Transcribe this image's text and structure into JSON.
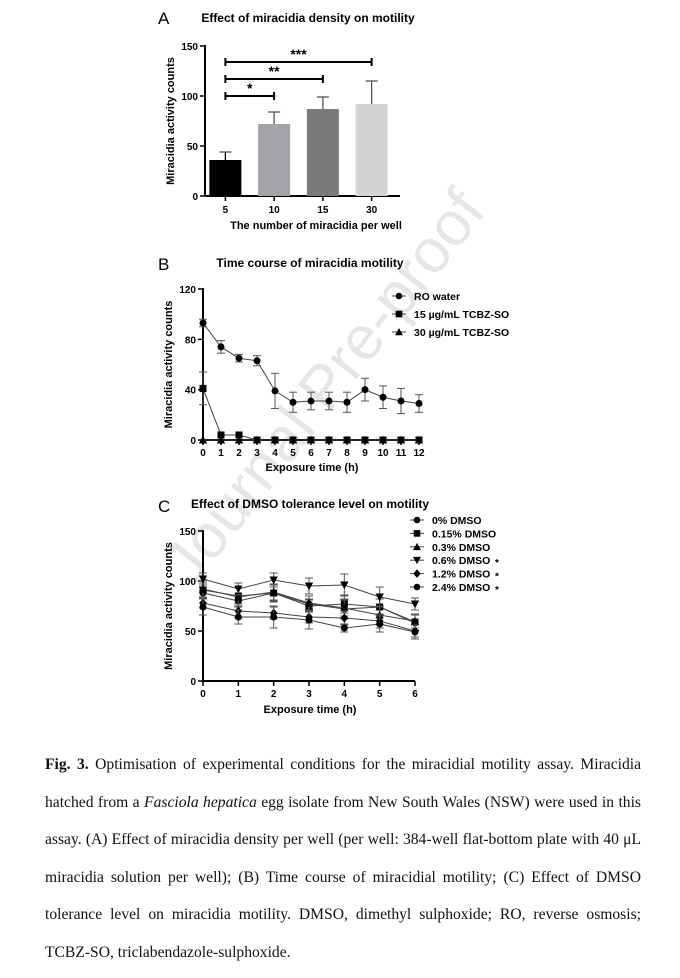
{
  "watermark": "Journal Pre-proof",
  "chart_data": [
    {
      "panel": "A",
      "type": "bar",
      "title": "Effect of miracidia density on motility",
      "xlabel": "The number of miracidia per well",
      "ylabel": "Miracidia activity counts",
      "ylim": [
        0,
        150
      ],
      "yticks": [
        "0",
        "50",
        "100",
        "150"
      ],
      "categories": [
        "5",
        "10",
        "15",
        "30"
      ],
      "values": [
        36,
        72,
        87,
        92
      ],
      "errors": [
        8,
        12,
        12,
        23
      ],
      "colors": [
        "#000000",
        "#a3a3a8",
        "#7a7a7a",
        "#d4d4d4"
      ],
      "significance": [
        {
          "from": "5",
          "to": "10",
          "label": "*",
          "y": 100
        },
        {
          "from": "5",
          "to": "15",
          "label": "**",
          "y": 117
        },
        {
          "from": "5",
          "to": "30",
          "label": "***",
          "y": 134
        }
      ]
    },
    {
      "panel": "B",
      "type": "line",
      "title": "Time course of miracidia motility",
      "xlabel": "Exposure time (h)",
      "ylabel": "Miracidia activity counts",
      "ylim": [
        0,
        120
      ],
      "yticks": [
        "0",
        "40",
        "80",
        "120"
      ],
      "x": [
        0,
        1,
        2,
        3,
        4,
        5,
        6,
        7,
        8,
        9,
        10,
        11,
        12
      ],
      "legend": "top-right",
      "series": [
        {
          "name": "RO water",
          "marker": "circle",
          "values": [
            93,
            74,
            65,
            63,
            39,
            30,
            31,
            31,
            30,
            40,
            34,
            31,
            29
          ],
          "errors": [
            3,
            5,
            3,
            4,
            14,
            8,
            7,
            7,
            8,
            9,
            9,
            10,
            7
          ]
        },
        {
          "name": "15 µg/mL TCBZ-SO",
          "marker": "square",
          "values": [
            41,
            4,
            4,
            0,
            0,
            0,
            0,
            0,
            0,
            0,
            0,
            0,
            0
          ],
          "errors": [
            13,
            0,
            0,
            0,
            0,
            0,
            0,
            0,
            0,
            0,
            0,
            0,
            0
          ]
        },
        {
          "name": "30 µg/mL TCBZ-SO",
          "marker": "triangle",
          "values": [
            0,
            0,
            0,
            0,
            0,
            0,
            0,
            0,
            0,
            0,
            0,
            0,
            0
          ],
          "errors": [
            0,
            0,
            0,
            0,
            0,
            0,
            0,
            0,
            0,
            0,
            0,
            0,
            0
          ]
        }
      ]
    },
    {
      "panel": "C",
      "type": "line",
      "title": "Effect of DMSO tolerance level on motility",
      "xlabel": "Exposure time (h)",
      "ylabel": "Miracidia activity counts",
      "ylim": [
        0,
        150
      ],
      "yticks": [
        "0",
        "50",
        "100",
        "150"
      ],
      "x": [
        0,
        1,
        2,
        3,
        4,
        5,
        6
      ],
      "legend": "top-right",
      "series": [
        {
          "name": "0% DMSO",
          "star": "",
          "marker": "circle",
          "values": [
            88,
            80,
            88,
            77,
            72,
            74,
            58
          ],
          "errors": [
            6,
            6,
            8,
            5,
            10,
            8,
            8
          ]
        },
        {
          "name": "0.15% DMSO",
          "star": "",
          "marker": "square",
          "values": [
            91,
            85,
            88,
            75,
            77,
            74,
            59
          ],
          "errors": [
            7,
            8,
            9,
            6,
            9,
            8,
            8
          ]
        },
        {
          "name": "0.3% DMSO",
          "star": "",
          "marker": "triangle",
          "values": [
            92,
            84,
            89,
            78,
            73,
            66,
            60
          ],
          "errors": [
            8,
            9,
            8,
            7,
            8,
            9,
            7
          ]
        },
        {
          "name": "0.6% DMSO",
          "star": "*",
          "marker": "triangle-down",
          "values": [
            102,
            92,
            101,
            95,
            96,
            84,
            77
          ],
          "errors": [
            6,
            6,
            7,
            8,
            11,
            10,
            6
          ]
        },
        {
          "name": "1.2% DMSO",
          "star": "*",
          "marker": "diamond",
          "values": [
            78,
            70,
            68,
            64,
            63,
            60,
            50
          ],
          "errors": [
            5,
            7,
            6,
            6,
            7,
            7,
            6
          ]
        },
        {
          "name": "2.4% DMSO",
          "star": "*",
          "marker": "circle",
          "values": [
            74,
            64,
            64,
            61,
            53,
            57,
            49
          ],
          "errors": [
            8,
            7,
            11,
            9,
            4,
            8,
            7
          ]
        }
      ]
    }
  ],
  "caption": {
    "label": "Fig. 3.",
    "text_1": " Optimisation of experimental conditions for the miracidial motility assay. Miracidia hatched from a ",
    "italic": "Fasciola hepatica",
    "text_2": " egg isolate from New South Wales (NSW) were used in this assay. (A) Effect of miracidia density per well (per well: 384-well flat-bottom plate with 40 μL miracidia solution per well); (B) Time course of miracidial motility; (C) Effect of DMSO tolerance level on miracidia motility. DMSO, dimethyl sulphoxide; RO, reverse osmosis; TCBZ-SO, triclabendazole-sulphoxide."
  }
}
